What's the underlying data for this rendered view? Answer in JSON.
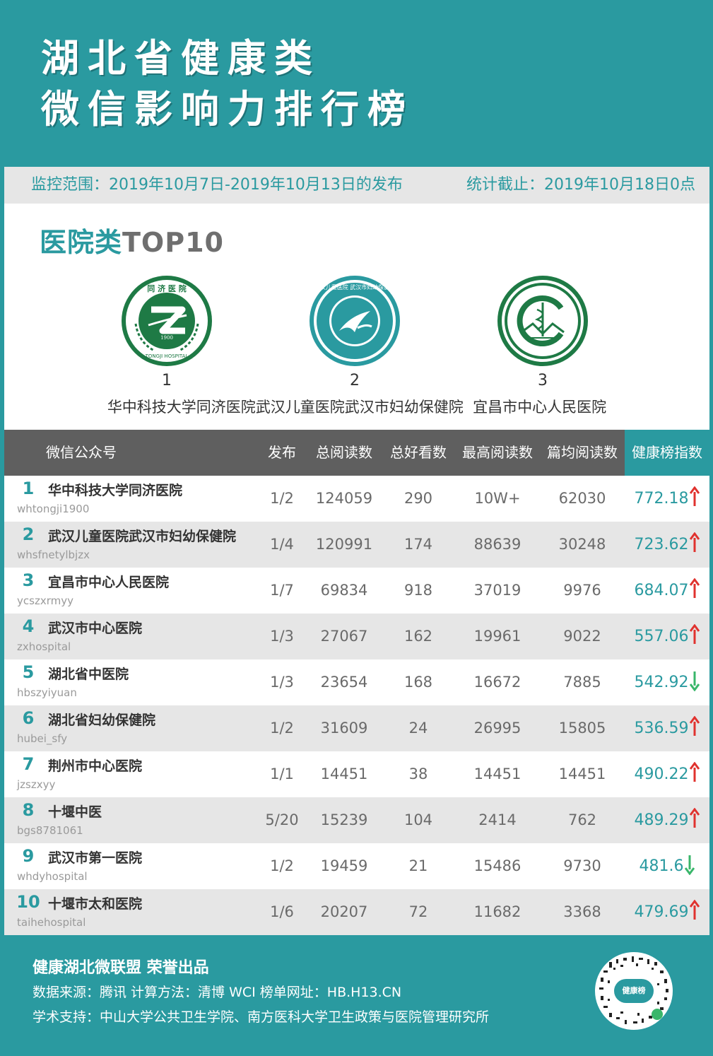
{
  "header": {
    "title_line1": "湖北省健康类",
    "title_line2": "微信影响力排行榜"
  },
  "range": {
    "monitor": "监控范围：2019年10月7日-2019年10月13日的发布",
    "cutoff": "统计截止：2019年10月18日0点"
  },
  "section": {
    "title_cn": "医院类",
    "title_en": "TOP10"
  },
  "top3": [
    {
      "rank": "1",
      "name": "华中科技大学同济医院",
      "logo_text": "同 济 医 院",
      "logo_bottom": "TONGJI HOSPITAL",
      "logo_year": "1900"
    },
    {
      "rank": "2",
      "name": "武汉儿童医院武汉市妇幼保健院",
      "logo_text": "武汉儿童医院 武汉市妇幼保健院"
    },
    {
      "rank": "3",
      "name": "宜昌市中心人民医院"
    }
  ],
  "table": {
    "headers": [
      "微信公众号",
      "发布",
      "总阅读数",
      "总好看数",
      "最高阅读数",
      "篇均阅读数",
      "健康榜指数"
    ],
    "rows": [
      {
        "rank": "1",
        "name": "华中科技大学同济医院",
        "account": "whtongji1900",
        "publish": "1/2",
        "total_read": "124059",
        "total_like": "290",
        "max_read": "10W+",
        "avg_read": "62030",
        "index": "772.18",
        "trend": "up"
      },
      {
        "rank": "2",
        "name": "武汉儿童医院武汉市妇幼保健院",
        "account": "whsfnetylbjzx",
        "publish": "1/4",
        "total_read": "120991",
        "total_like": "174",
        "max_read": "88639",
        "avg_read": "30248",
        "index": "723.62",
        "trend": "up"
      },
      {
        "rank": "3",
        "name": "宜昌市中心人民医院",
        "account": "ycszxrmyy",
        "publish": "1/7",
        "total_read": "69834",
        "total_like": "918",
        "max_read": "37019",
        "avg_read": "9976",
        "index": "684.07",
        "trend": "up"
      },
      {
        "rank": "4",
        "name": "武汉市中心医院",
        "account": "zxhospital",
        "publish": "1/3",
        "total_read": "27067",
        "total_like": "162",
        "max_read": "19961",
        "avg_read": "9022",
        "index": "557.06",
        "trend": "up"
      },
      {
        "rank": "5",
        "name": "湖北省中医院",
        "account": "hbszyiyuan",
        "publish": "1/3",
        "total_read": "23654",
        "total_like": "168",
        "max_read": "16672",
        "avg_read": "7885",
        "index": "542.92",
        "trend": "down"
      },
      {
        "rank": "6",
        "name": "湖北省妇幼保健院",
        "account": "hubei_sfy",
        "publish": "1/2",
        "total_read": "31609",
        "total_like": "24",
        "max_read": "26995",
        "avg_read": "15805",
        "index": "536.59",
        "trend": "up"
      },
      {
        "rank": "7",
        "name": "荆州市中心医院",
        "account": "jzszxyy",
        "publish": "1/1",
        "total_read": "14451",
        "total_like": "38",
        "max_read": "14451",
        "avg_read": "14451",
        "index": "490.22",
        "trend": "up"
      },
      {
        "rank": "8",
        "name": "十堰中医",
        "account": "bgs8781061",
        "publish": "5/20",
        "total_read": "15239",
        "total_like": "104",
        "max_read": "2414",
        "avg_read": "762",
        "index": "489.29",
        "trend": "up"
      },
      {
        "rank": "9",
        "name": "武汉市第一医院",
        "account": "whdyhospital",
        "publish": "1/2",
        "total_read": "19459",
        "total_like": "21",
        "max_read": "15486",
        "avg_read": "9730",
        "index": "481.6",
        "trend": "down"
      },
      {
        "rank": "10",
        "name": "十堰市太和医院",
        "account": "taihehospital",
        "publish": "1/6",
        "total_read": "20207",
        "total_like": "72",
        "max_read": "11682",
        "avg_read": "3368",
        "index": "479.69",
        "trend": "up"
      }
    ]
  },
  "footer": {
    "line1": "健康湖北微联盟 荣誉出品",
    "line2": "数据来源：腾讯   计算方法：清博 WCI   榜单网址：HB.H13.CN",
    "line3": "学术支持：中山大学公共卫生学院、南方医科大学卫生政策与医院管理研究所",
    "qr_label": "健康榜"
  },
  "colors": {
    "brand": "#2a9aa0",
    "up_arrow": "#e0322e",
    "down_arrow": "#39b66a",
    "logo_green": "#1e7a45"
  },
  "icons": {
    "up": "red-up-arrow-icon",
    "down": "green-down-arrow-icon"
  }
}
